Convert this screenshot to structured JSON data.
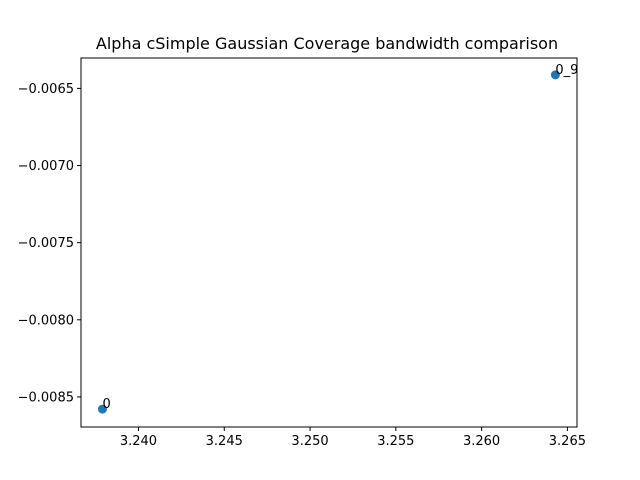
{
  "chart_data": {
    "type": "scatter",
    "title": "Alpha cSimple Gaussian Coverage bandwidth comparison",
    "xlabel": "",
    "ylabel": "",
    "xlim": [
      3.23665,
      3.26556
    ],
    "ylim": [
      -0.008695,
      -0.006303
    ],
    "xticks": [
      3.24,
      3.245,
      3.25,
      3.255,
      3.26,
      3.265
    ],
    "xtick_labels": [
      "3.240",
      "3.245",
      "3.250",
      "3.255",
      "3.260",
      "3.265"
    ],
    "yticks": [
      -0.0065,
      -0.007,
      -0.0075,
      -0.008,
      -0.0085
    ],
    "ytick_labels": [
      "−0.0065",
      "−0.0070",
      "−0.0075",
      "−0.0080",
      "−0.0085"
    ],
    "grid": false,
    "points": [
      {
        "x": 3.2379,
        "y": -0.008579,
        "label": "0"
      },
      {
        "x": 3.2643,
        "y": -0.006412,
        "label": "0_9"
      }
    ],
    "color": "#1f77b4"
  }
}
